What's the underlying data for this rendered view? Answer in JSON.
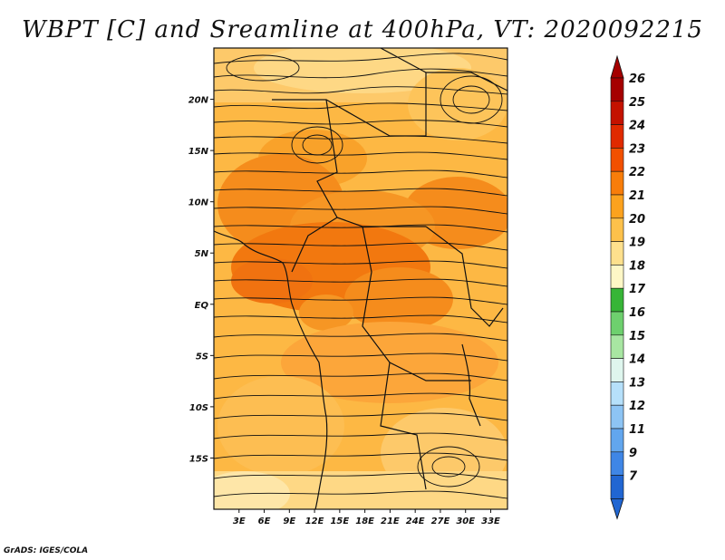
{
  "title": "WBPT [C] and Sreamline at 400hPa, VT: 2020092215",
  "footer": "GrADS: IGES/COLA",
  "map": {
    "lon_range": [
      0,
      35
    ],
    "lat_range": [
      -20,
      25
    ],
    "x_ticks": [
      "3E",
      "6E",
      "9E",
      "12E",
      "15E",
      "18E",
      "21E",
      "24E",
      "27E",
      "30E",
      "33E"
    ],
    "x_tick_values": [
      3,
      6,
      9,
      12,
      15,
      18,
      21,
      24,
      27,
      30,
      33
    ],
    "y_ticks": [
      "20N",
      "15N",
      "10N",
      "5N",
      "EQ",
      "5S",
      "10S",
      "15S"
    ],
    "y_tick_values": [
      20,
      15,
      10,
      5,
      0,
      -5,
      -10,
      -15
    ]
  },
  "colorbar": {
    "labels": [
      "26",
      "25",
      "24",
      "23",
      "22",
      "21",
      "20",
      "19",
      "18",
      "17",
      "16",
      "15",
      "14",
      "13",
      "12",
      "11",
      "9",
      "7"
    ],
    "colors": [
      "#a50000",
      "#c41200",
      "#e02a00",
      "#f25000",
      "#f87d0a",
      "#fca21e",
      "#fdc14b",
      "#fee08d",
      "#fef7c6",
      "#37b537",
      "#6ed06e",
      "#a8e6a2",
      "#dff6ee",
      "#b6e0fa",
      "#8dc4f4",
      "#62a6ee",
      "#3f86e6",
      "#2166d2"
    ],
    "top_arrow_color": "#a50000",
    "bottom_arrow_color": "#2166d2"
  }
}
